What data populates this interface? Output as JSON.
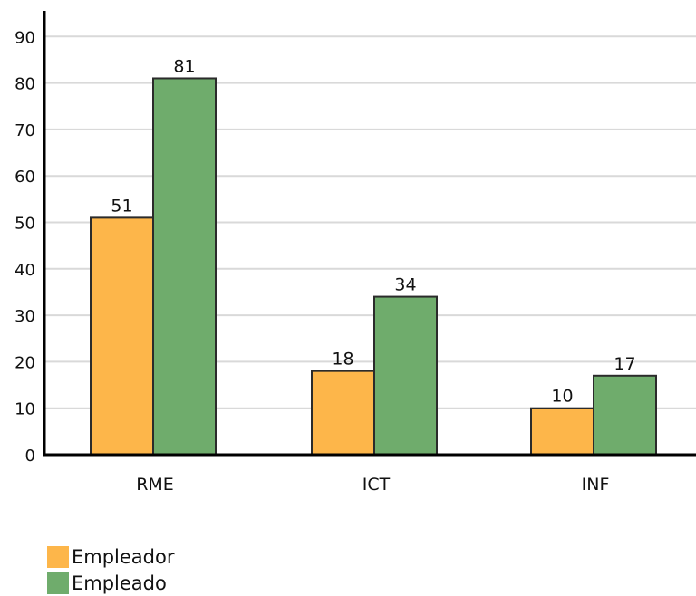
{
  "chart_data": {
    "type": "bar",
    "categories": [
      "RME",
      "ICT",
      "INF"
    ],
    "series": [
      {
        "name": "Empleador",
        "values": [
          51,
          18,
          10
        ],
        "color": "#FDB64A"
      },
      {
        "name": "Empleado",
        "values": [
          81,
          34,
          17
        ],
        "color": "#6FAC6C"
      }
    ],
    "ylim": [
      0,
      90
    ],
    "yticks": [
      0,
      10,
      20,
      30,
      40,
      50,
      60,
      70,
      80,
      90
    ],
    "grid": true,
    "legend_position": "bottom-left",
    "title": "",
    "xlabel": "",
    "ylabel": ""
  }
}
